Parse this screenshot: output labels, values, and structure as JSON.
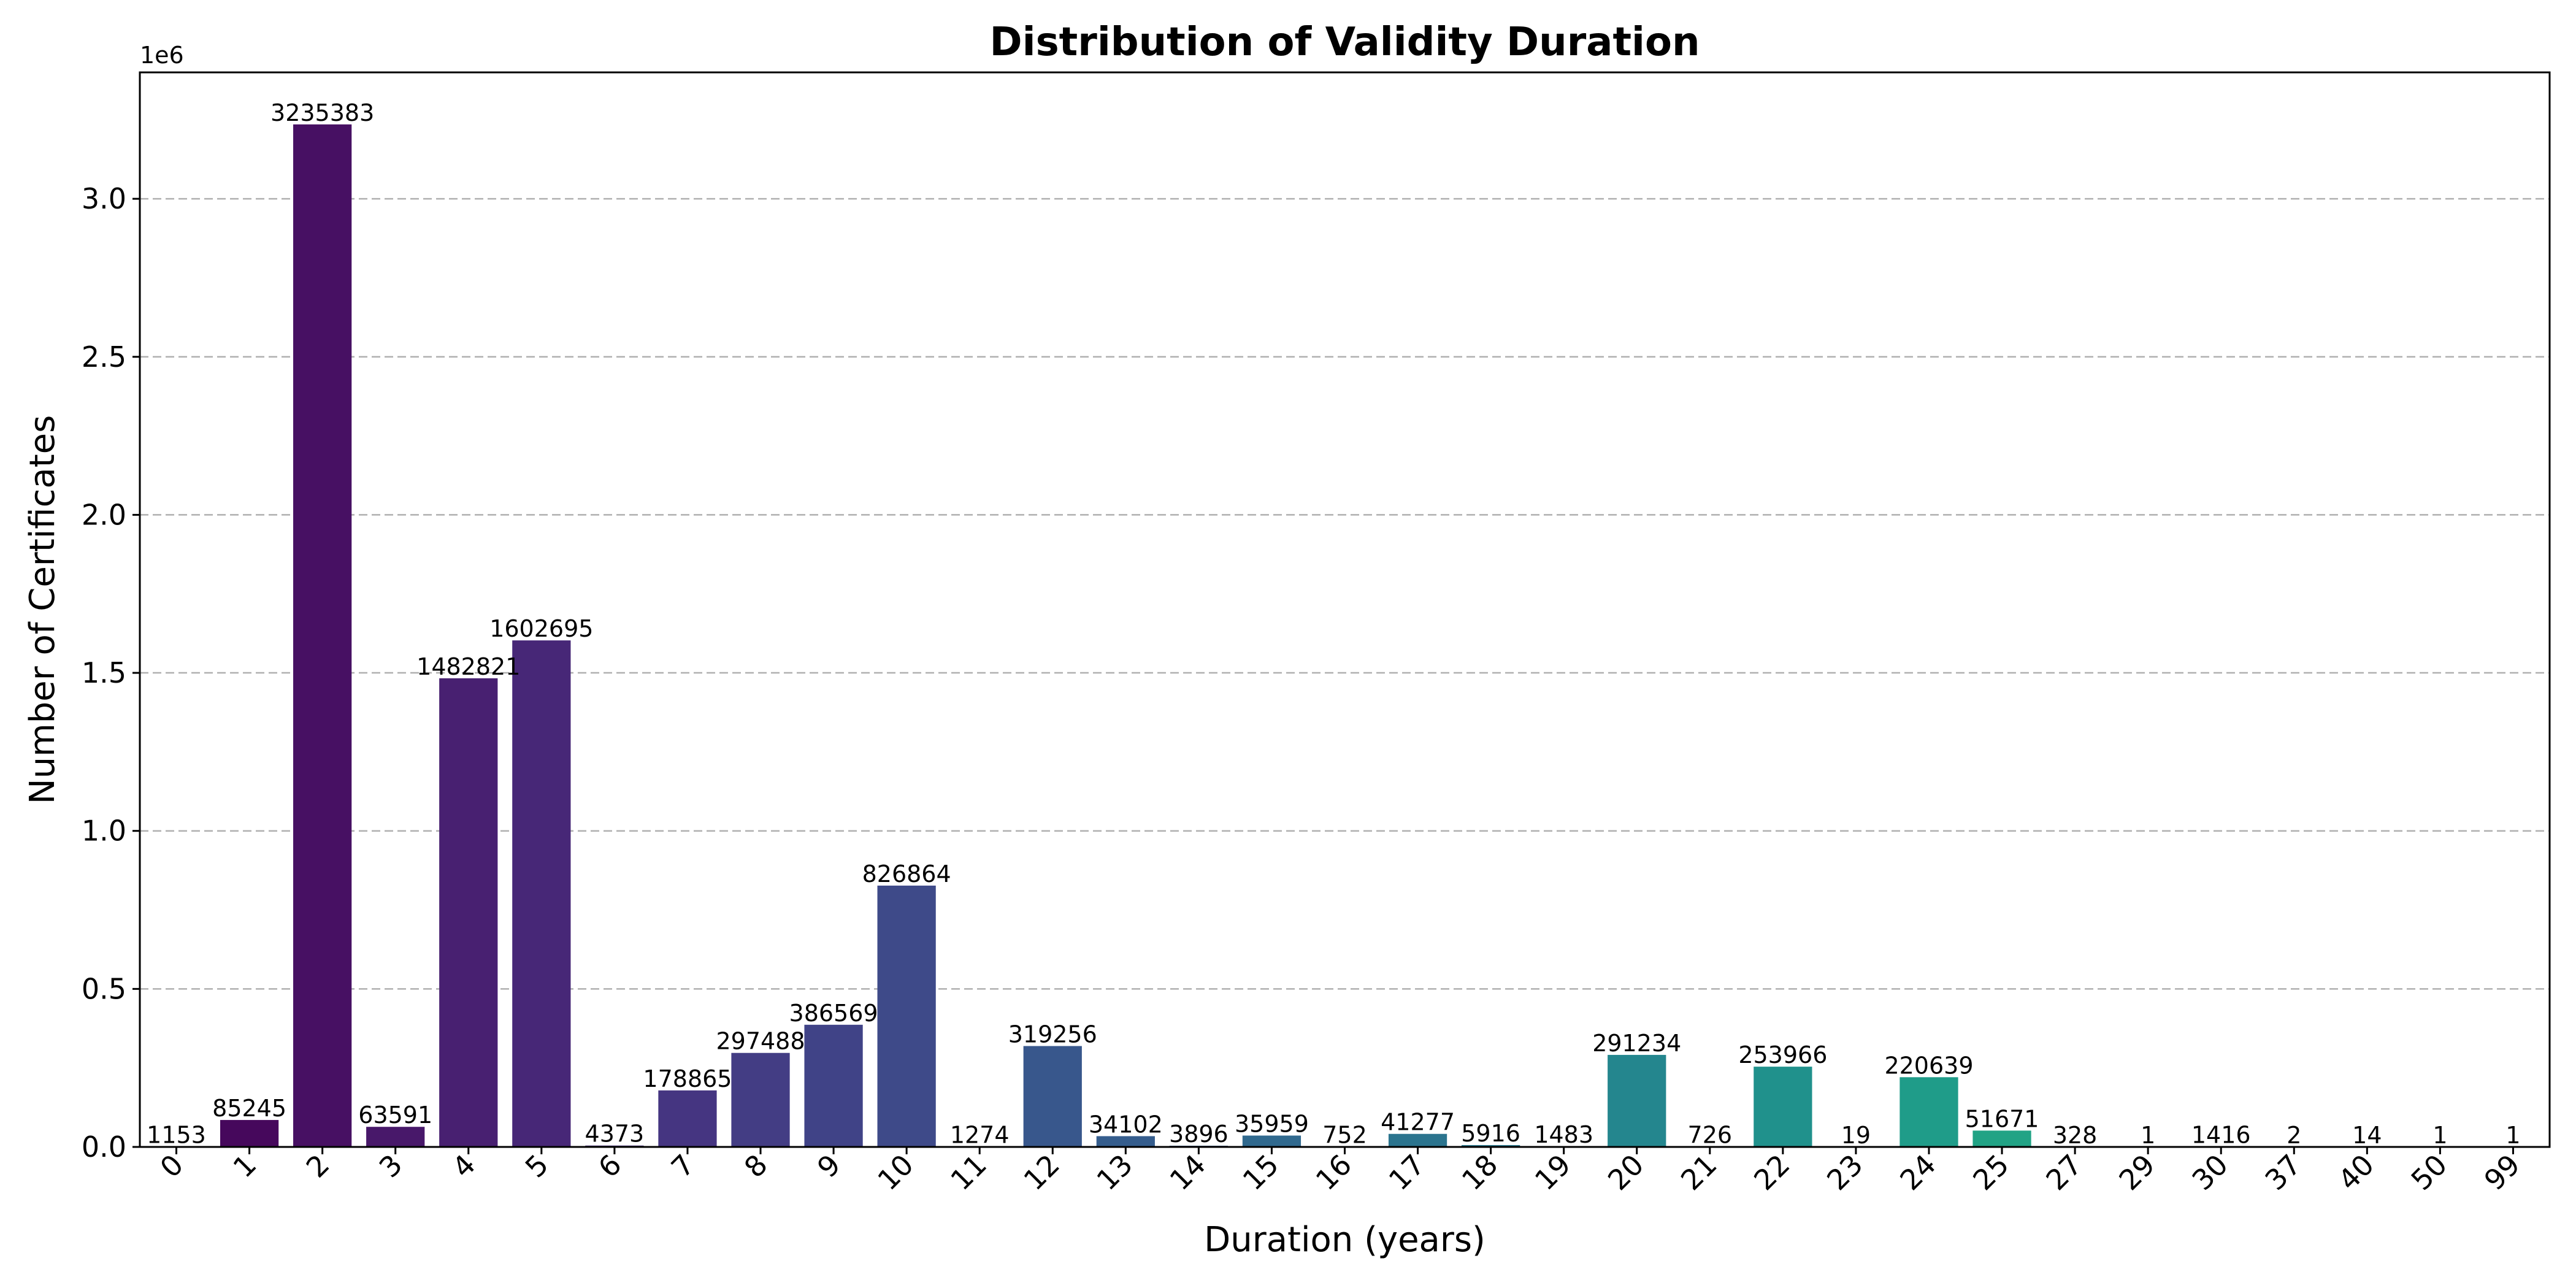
{
  "chart_data": {
    "type": "bar",
    "title": "Distribution of Validity Duration",
    "xlabel": "Duration (years)",
    "ylabel": "Number of Certificates",
    "y_offset_label": "1e6",
    "ylim": [
      0,
      3400000
    ],
    "y_ticks": [
      0,
      500000,
      1000000,
      1500000,
      2000000,
      2500000,
      3000000
    ],
    "y_tick_labels": [
      "0.0",
      "0.5",
      "1.0",
      "1.5",
      "2.0",
      "2.5",
      "3.0"
    ],
    "grid": true,
    "colormap": "viridis",
    "categories": [
      "0",
      "1",
      "2",
      "3",
      "4",
      "5",
      "6",
      "7",
      "8",
      "9",
      "10",
      "11",
      "12",
      "13",
      "14",
      "15",
      "16",
      "17",
      "18",
      "19",
      "20",
      "21",
      "22",
      "23",
      "24",
      "25",
      "27",
      "29",
      "30",
      "37",
      "40",
      "50",
      "99"
    ],
    "values": [
      1153,
      85245,
      3235383,
      63591,
      1482821,
      1602695,
      4373,
      178865,
      297488,
      386569,
      826864,
      1274,
      319256,
      34102,
      3896,
      35959,
      752,
      41277,
      5916,
      1483,
      291234,
      726,
      253966,
      19,
      220639,
      51671,
      328,
      1,
      1416,
      2,
      14,
      1,
      1
    ],
    "colors": [
      "#440154",
      "#46085c",
      "#471063",
      "#48186a",
      "#482071",
      "#472777",
      "#462f7c",
      "#453581",
      "#433d84",
      "#404387",
      "#3e4a89",
      "#3b518b",
      "#38578c",
      "#355d8d",
      "#32638e",
      "#30698e",
      "#2e6e8e",
      "#2b748e",
      "#297a8e",
      "#26808e",
      "#24868e",
      "#228b8d",
      "#20918c",
      "#1f978b",
      "#1f9c89",
      "#21a385",
      "#28a883",
      "#31ae7e",
      "#3bb479",
      "#47b972",
      "#55bf6a",
      "#64c363",
      "#72c85b"
    ]
  }
}
